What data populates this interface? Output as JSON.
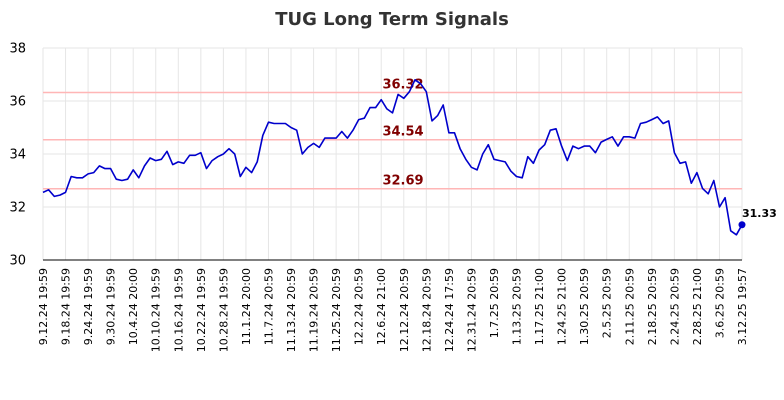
{
  "chart_data": {
    "type": "line",
    "title": "TUG Long Term Signals",
    "ylim": [
      30,
      38
    ],
    "yticks": [
      30,
      32,
      34,
      36,
      38
    ],
    "grid": true,
    "x_tick_labels": [
      "9.12.24 19:59",
      "9.18.24 19:59",
      "9.24.24 19:59",
      "9.30.24 19:59",
      "10.4.24 20:00",
      "10.10.24 19:59",
      "10.16.24 19:59",
      "10.22.24 19:59",
      "10.28.24 19:59",
      "11.1.24 20:00",
      "11.7.24 20:59",
      "11.13.24 20:59",
      "11.19.24 20:59",
      "11.25.24 20:59",
      "12.2.24 20:59",
      "12.6.24 21:00",
      "12.12.24 20:59",
      "12.18.24 20:59",
      "12.24.24 17:59",
      "12.31.24 20:59",
      "1.7.25 20:59",
      "1.13.25 20:59",
      "1.17.25 21:00",
      "1.24.25 21:00",
      "1.30.25 20:59",
      "2.5.25 20:59",
      "2.11.25 20:59",
      "2.18.25 20:59",
      "2.24.25 20:59",
      "2.28.25 21:00",
      "3.6.25 20:59",
      "3.12.25 19:57"
    ],
    "signal_lines": [
      {
        "value": 36.32,
        "label": "36.32"
      },
      {
        "value": 34.54,
        "label": "34.54"
      },
      {
        "value": 32.69,
        "label": "32.69"
      }
    ],
    "series": [
      {
        "values": [
          32.55,
          32.65,
          32.4,
          32.45,
          32.55,
          33.15,
          33.1,
          33.1,
          33.25,
          33.3,
          33.55,
          33.45,
          33.45,
          33.05,
          33.0,
          33.05,
          33.4,
          33.1,
          33.55,
          33.85,
          33.75,
          33.8,
          34.1,
          33.6,
          33.7,
          33.65,
          33.95,
          33.95,
          34.05,
          33.45,
          33.75,
          33.9,
          34.0,
          34.2,
          34.0,
          33.15,
          33.5,
          33.3,
          33.7,
          34.7,
          35.2,
          35.15,
          35.15,
          35.15,
          35.0,
          34.9,
          34.0,
          34.25,
          34.4,
          34.25,
          34.6,
          34.6,
          34.6,
          34.85,
          34.6,
          34.9,
          35.3,
          35.35,
          35.75,
          35.75,
          36.05,
          35.7,
          35.55,
          36.25,
          36.1,
          36.35,
          36.8,
          36.65,
          36.35,
          35.25,
          35.45,
          35.85,
          34.8,
          34.8,
          34.2,
          33.8,
          33.5,
          33.4,
          34.0,
          34.35,
          33.8,
          33.75,
          33.7,
          33.35,
          33.15,
          33.1,
          33.9,
          33.65,
          34.15,
          34.35,
          34.9,
          34.95,
          34.3,
          33.75,
          34.3,
          34.2,
          34.3,
          34.3,
          34.05,
          34.45,
          34.55,
          34.65,
          34.3,
          34.65,
          34.65,
          34.6,
          35.15,
          35.2,
          35.3,
          35.4,
          35.15,
          35.25,
          34.05,
          33.65,
          33.7,
          32.9,
          33.3,
          32.7,
          32.5,
          33.0,
          32.0,
          32.35,
          31.1,
          30.95,
          31.33
        ],
        "last_label": "31.33"
      }
    ],
    "colors": {
      "line": "#0000cc",
      "signal_line": "#ffb6b6",
      "signal_label": "#800000",
      "grid": "#e6e6e6",
      "axis": "#000000"
    }
  }
}
